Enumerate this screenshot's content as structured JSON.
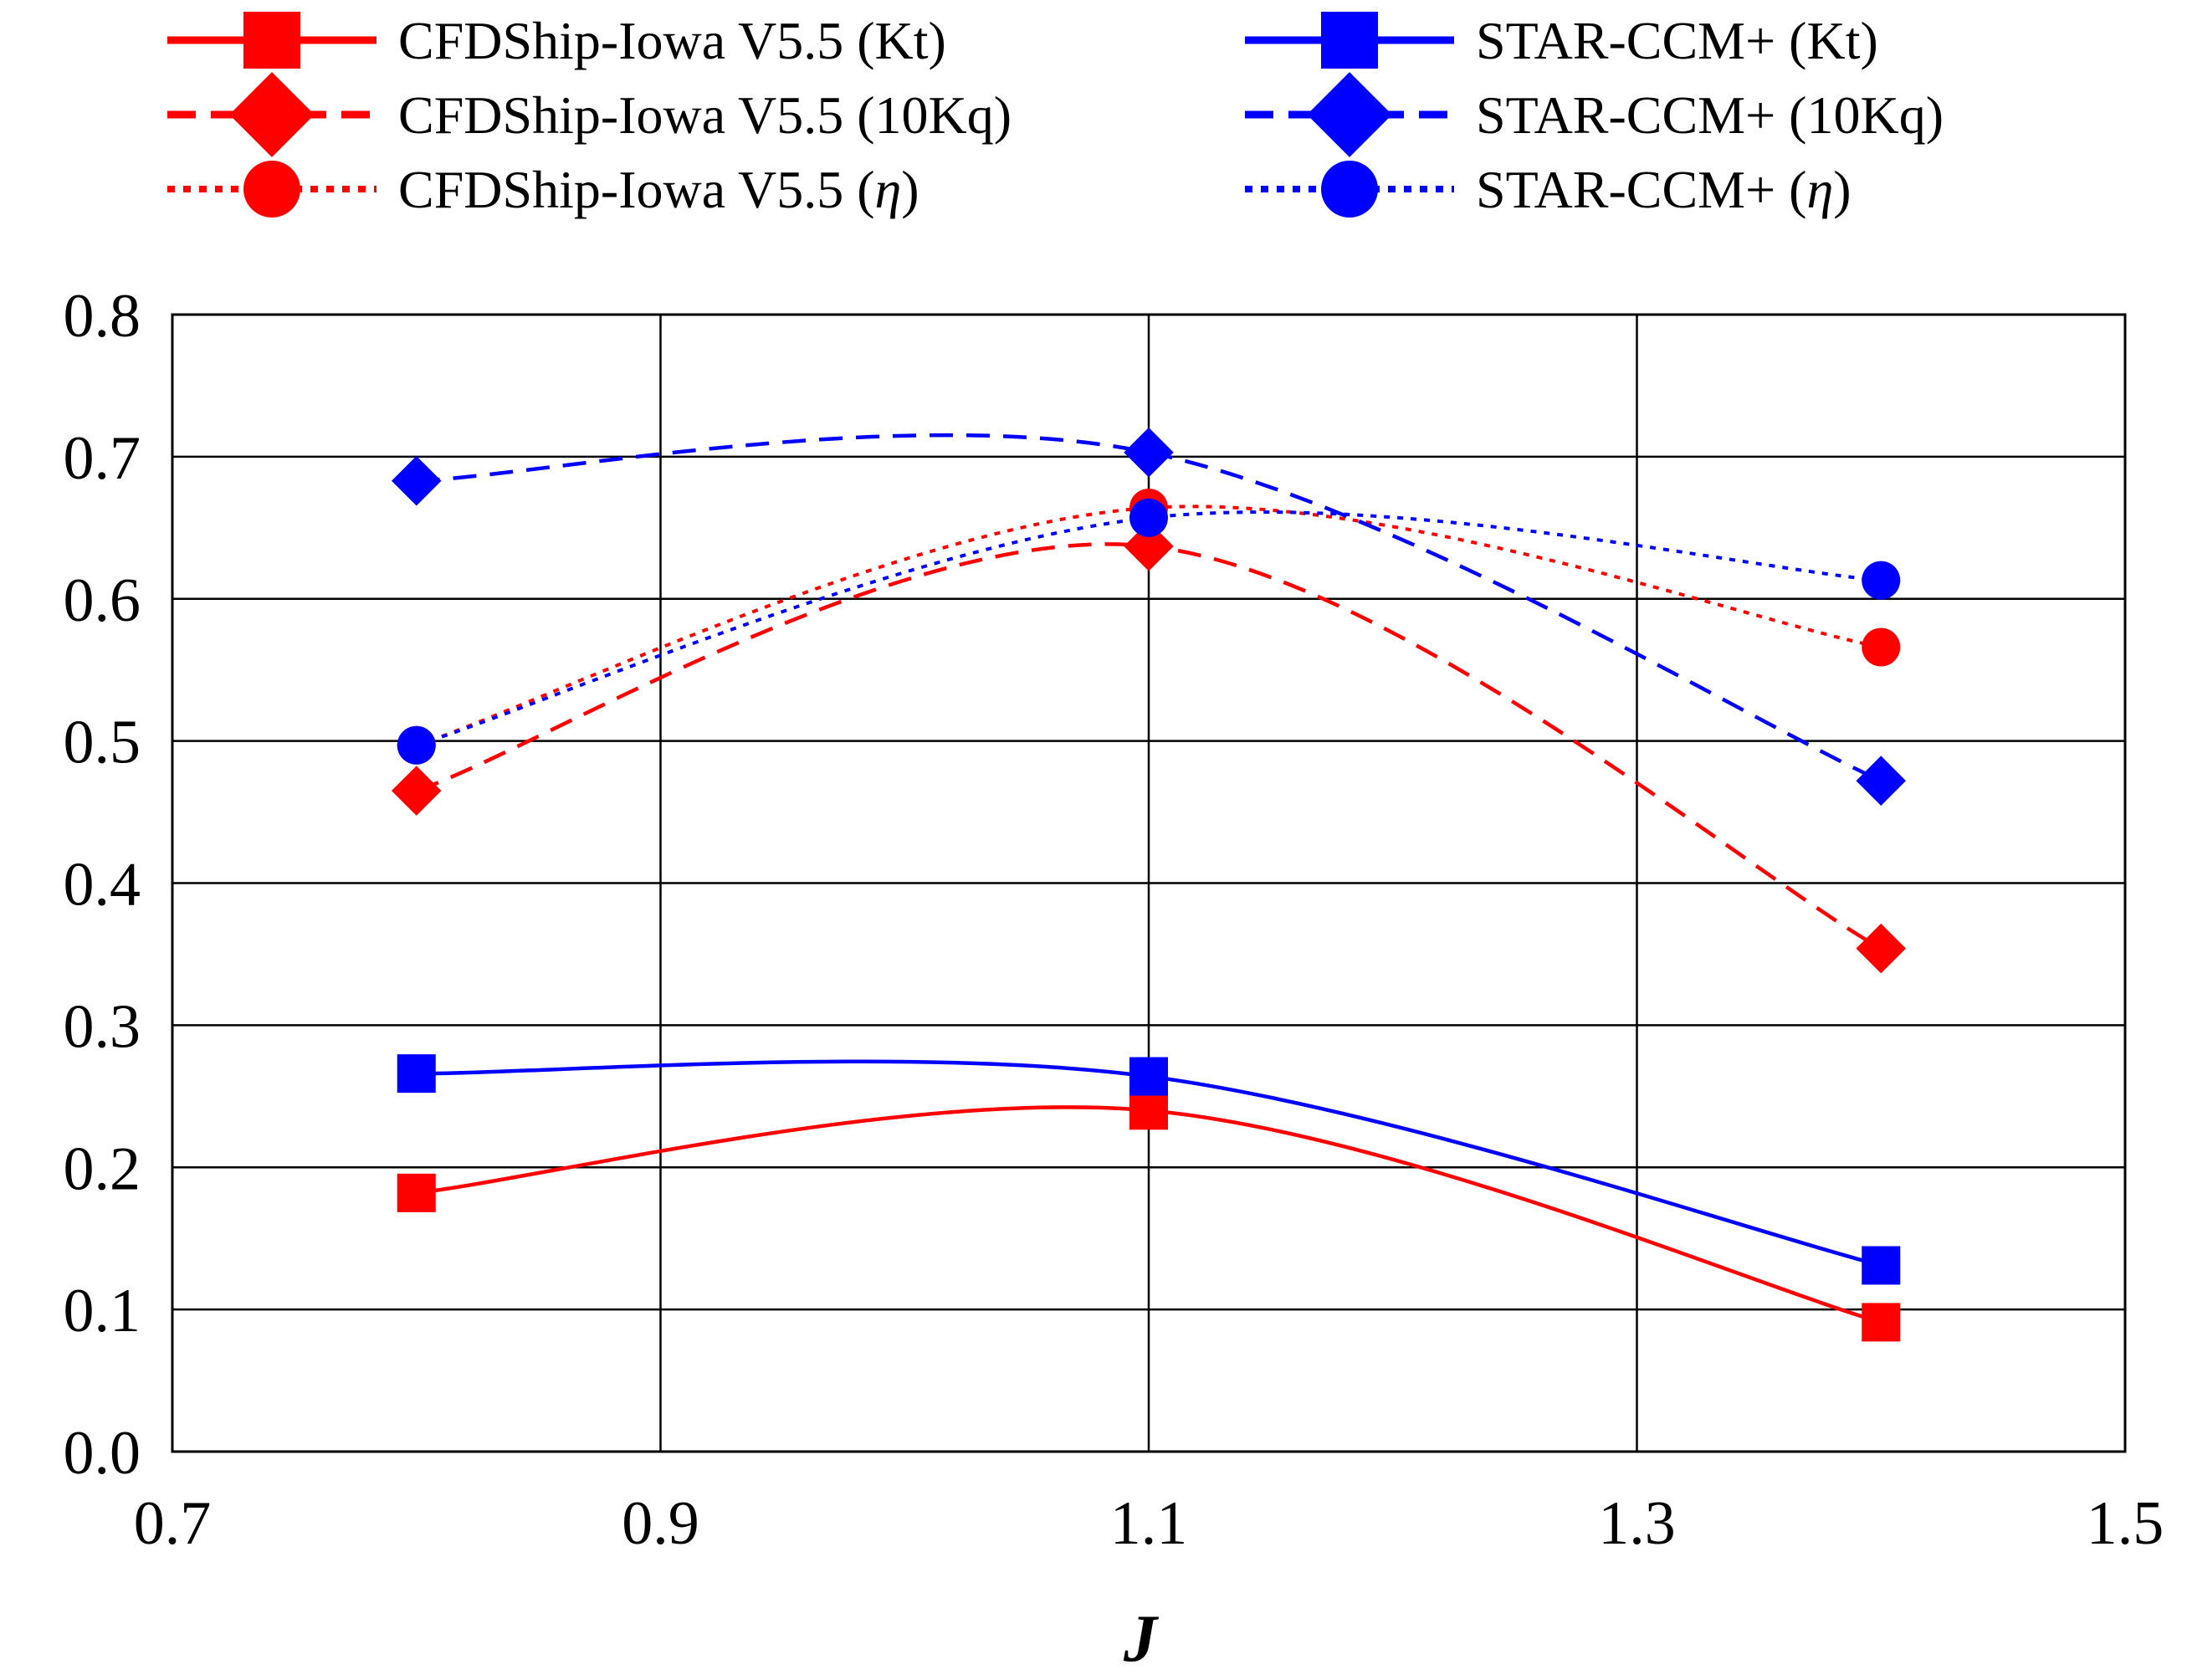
{
  "chart_data": {
    "type": "line",
    "title": "",
    "xlabel": "J",
    "ylabel": "",
    "xlim": [
      0.7,
      1.5
    ],
    "ylim": [
      0.0,
      0.8
    ],
    "x_ticks": [
      "0.7",
      "0.9",
      "1.1",
      "1.3",
      "1.5"
    ],
    "x_tick_values": [
      0.7,
      0.9,
      1.1,
      1.3,
      1.5
    ],
    "y_ticks": [
      "0.0",
      "0.1",
      "0.2",
      "0.3",
      "0.4",
      "0.5",
      "0.6",
      "0.7",
      "0.8"
    ],
    "y_tick_values": [
      0.0,
      0.1,
      0.2,
      0.3,
      0.4,
      0.5,
      0.6,
      0.7,
      0.8
    ],
    "grid": true,
    "legend_position": "top",
    "x": [
      0.8,
      1.1,
      1.4
    ],
    "series": [
      {
        "name": "CFDShip-Iowa V5.5 (Kt)",
        "label_prefix": "CFDShip-Iowa V5.5 (",
        "label_symbol": "Kt",
        "label_suffix": ")",
        "values": [
          0.182,
          0.24,
          0.091
        ],
        "color": "#ff0000",
        "dash": "solid",
        "marker": "square",
        "smooth": true
      },
      {
        "name": "CFDShip-Iowa V5.5 (10Kq)",
        "label_prefix": "CFDShip-Iowa V5.5 (",
        "label_symbol": "10Kq",
        "label_suffix": ")",
        "values": [
          0.465,
          0.637,
          0.354
        ],
        "color": "#ff0000",
        "dash": "dashed",
        "marker": "diamond",
        "smooth": true
      },
      {
        "name": "CFDShip-Iowa V5.5 (η)",
        "label_prefix": "CFDShip-Iowa V5.5 (",
        "label_symbol": "η",
        "label_suffix": ")",
        "values": [
          0.497,
          0.664,
          0.566
        ],
        "color": "#ff0000",
        "dash": "dotted",
        "marker": "circle",
        "smooth": true
      },
      {
        "name": "STAR-CCM+ (Kt)",
        "label_prefix": "STAR-CCM+ (",
        "label_symbol": "Kt",
        "label_suffix": ")",
        "values": [
          0.266,
          0.264,
          0.131
        ],
        "color": "#0000ff",
        "dash": "solid",
        "marker": "square",
        "smooth": true
      },
      {
        "name": "STAR-CCM+ (10Kq)",
        "label_prefix": "STAR-CCM+ (",
        "label_symbol": "10Kq",
        "label_suffix": ")",
        "values": [
          0.683,
          0.703,
          0.472
        ],
        "color": "#0000ff",
        "dash": "dashed",
        "marker": "diamond",
        "smooth": true
      },
      {
        "name": "STAR-CCM+ (η)",
        "label_prefix": "STAR-CCM+ (",
        "label_symbol": "η",
        "label_suffix": ")",
        "values": [
          0.497,
          0.657,
          0.613
        ],
        "color": "#0000ff",
        "dash": "dotted",
        "marker": "circle",
        "smooth": true
      }
    ]
  }
}
